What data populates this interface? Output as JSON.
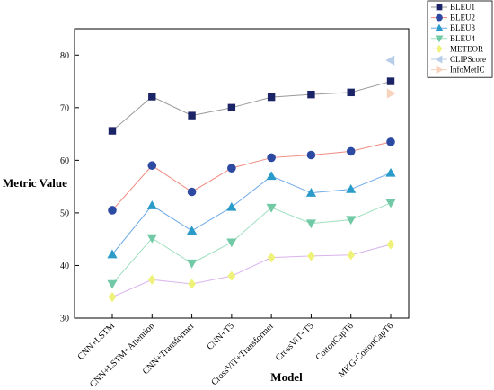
{
  "chart_data": {
    "type": "line",
    "xlabel": "Model",
    "ylabel": "Metric Value",
    "categories": [
      "CNN+LSTM",
      "CNN+LSTM+Attention",
      "CNN+Transformer",
      "CNN+T5",
      "CrossViT+Transformer",
      "CrossViT+T5",
      "CottonCapT6",
      "MKG-CottonCapT6"
    ],
    "ylim": [
      30,
      85
    ],
    "yticks": [
      30,
      40,
      50,
      60,
      70,
      80
    ],
    "grid": false,
    "legend_position": "top-right",
    "series": [
      {
        "name": "BLEU1",
        "marker": "square",
        "marker_color": "#1a2466",
        "line_color": "#999999",
        "values": [
          65.6,
          72.1,
          68.5,
          70.0,
          72.0,
          72.5,
          72.9,
          75.0
        ]
      },
      {
        "name": "BLEU2",
        "marker": "circle",
        "marker_color": "#2d4aa3",
        "line_color": "#f08a80",
        "values": [
          50.5,
          59.0,
          54.0,
          58.5,
          60.5,
          61.0,
          61.7,
          63.5
        ]
      },
      {
        "name": "BLEU3",
        "marker": "triangle-up",
        "marker_color": "#2b9bc9",
        "line_color": "#6aa8e8",
        "values": [
          42.1,
          51.4,
          46.6,
          51.1,
          57.0,
          53.8,
          54.5,
          57.6
        ]
      },
      {
        "name": "BLEU4",
        "marker": "triangle-down",
        "marker_color": "#72c9a6",
        "line_color": "#9ddfbe",
        "values": [
          36.5,
          45.2,
          40.4,
          44.4,
          51.0,
          48.0,
          48.7,
          51.9
        ]
      },
      {
        "name": "METEOR",
        "marker": "diamond",
        "marker_color": "#eef27a",
        "line_color": "#d9b3ee",
        "values": [
          34.0,
          37.3,
          36.5,
          38.0,
          41.5,
          41.8,
          42.0,
          44.0
        ]
      },
      {
        "name": "CLIPScore",
        "marker": "triangle-left",
        "marker_color": "#b7cde9",
        "line_color": "#b7cde9",
        "values": [
          null,
          null,
          null,
          null,
          null,
          null,
          null,
          79.0
        ]
      },
      {
        "name": "InfoMetIC",
        "marker": "triangle-right",
        "marker_color": "#f7d2bd",
        "line_color": "#f7d2bd",
        "values": [
          null,
          null,
          null,
          null,
          null,
          null,
          null,
          72.7
        ]
      }
    ]
  }
}
